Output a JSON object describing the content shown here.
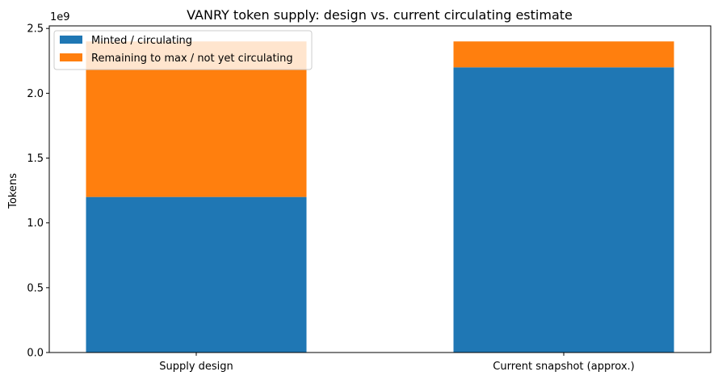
{
  "chart_data": {
    "type": "bar",
    "stacked": true,
    "title": "VANRY token supply: design vs. current circulating estimate",
    "xlabel": "",
    "ylabel": "Tokens",
    "offset_label": "1e9",
    "categories": [
      "Supply design",
      "Current snapshot (approx.)"
    ],
    "series": [
      {
        "name": "Minted / circulating",
        "values": [
          1200000000,
          2200000000
        ],
        "color": "#1f77b4"
      },
      {
        "name": "Remaining to max / not yet circulating",
        "values": [
          1200000000,
          200000000
        ],
        "color": "#ff7f0e"
      }
    ],
    "ylim": [
      0,
      2520000000
    ],
    "yticks": [
      0,
      500000000,
      1000000000,
      1500000000,
      2000000000,
      2500000000
    ],
    "ytick_labels": [
      "0.0",
      "0.5",
      "1.0",
      "1.5",
      "2.0",
      "2.5"
    ],
    "grid": false,
    "legend_position": "top-left"
  }
}
